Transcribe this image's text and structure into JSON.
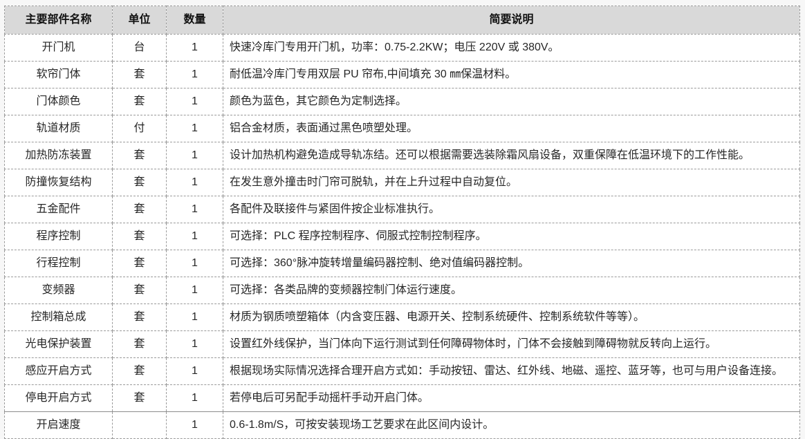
{
  "colors": {
    "header_bg": "#d9d9d9",
    "border": "#9a9a9a",
    "text": "#262626",
    "cell_bg": "#ffffff"
  },
  "table": {
    "columns": [
      {
        "label": "主要部件名称"
      },
      {
        "label": "单位"
      },
      {
        "label": "数量"
      },
      {
        "label": "简要说明"
      }
    ],
    "rows": [
      {
        "name": "开门机",
        "unit": "台",
        "qty": "1",
        "desc": "快速冷库门专用开门机，功率：0.75-2.2KW；电压 220V 或 380V。"
      },
      {
        "name": "软帘门体",
        "unit": "套",
        "qty": "1",
        "desc": "耐低温冷库门专用双层 PU 帘布,中间填充 30 ㎜保温材料。"
      },
      {
        "name": "门体颜色",
        "unit": "套",
        "qty": "1",
        "desc": "颜色为蓝色，其它颜色为定制选择。"
      },
      {
        "name": "轨道材质",
        "unit": "付",
        "qty": "1",
        "desc": "铝合金材质，表面通过黑色喷塑处理。"
      },
      {
        "name": "加热防冻装置",
        "unit": "套",
        "qty": "1",
        "desc": "设计加热机构避免造成导轨冻结。还可以根据需要选装除霜风扇设备，双重保障在低温环境下的工作性能。"
      },
      {
        "name": "防撞恢复结构",
        "unit": "套",
        "qty": "1",
        "desc": "在发生意外撞击时门帘可脱轨，并在上升过程中自动复位。"
      },
      {
        "name": "五金配件",
        "unit": "套",
        "qty": "1",
        "desc": "各配件及联接件与紧固件按企业标准执行。"
      },
      {
        "name": "程序控制",
        "unit": "套",
        "qty": "1",
        "desc": "可选择：PLC 程序控制程序、伺服式控制控制程序。"
      },
      {
        "name": "行程控制",
        "unit": "套",
        "qty": "1",
        "desc": "可选择：360°脉冲旋转增量编码器控制、绝对值编码器控制。"
      },
      {
        "name": "变频器",
        "unit": "套",
        "qty": "1",
        "desc": "可选择：各类品牌的变频器控制门体运行速度。"
      },
      {
        "name": "控制箱总成",
        "unit": "套",
        "qty": "1",
        "desc": "材质为钢质喷塑箱体（内含变压器、电源开关、控制系统硬件、控制系统软件等等）。"
      },
      {
        "name": "光电保护装置",
        "unit": "套",
        "qty": "1",
        "desc": "设置红外线保护，当门体向下运行测试到任何障碍物体时，门体不会接触到障碍物就反转向上运行。"
      },
      {
        "name": "感应开启方式",
        "unit": "套",
        "qty": "1",
        "desc": "根据现场实际情况选择合理开启方式如：手动按钮、雷达、红外线、地磁、遥控、蓝牙等，也可与用户设备连接。"
      },
      {
        "name": "停电开启方式",
        "unit": "套",
        "qty": "1",
        "desc": "若停电后可另配手动摇杆手动开启门体。"
      },
      {
        "name": "开启速度",
        "unit": "",
        "qty": "1",
        "desc": "0.6-1.8m/S，可按安装现场工艺要求在此区间内设计。"
      }
    ]
  }
}
